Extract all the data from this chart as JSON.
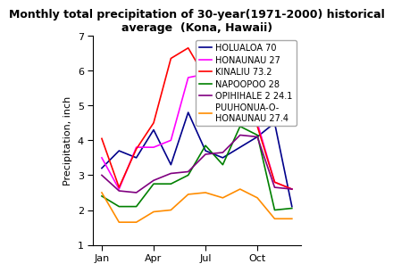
{
  "title": "Monthly total precipitation of 30-year(1971-2000) historical\naverage  (Kona, Hawaii)",
  "ylabel": "Precipitation, inch",
  "month_indices": [
    1,
    2,
    3,
    4,
    5,
    6,
    7,
    8,
    9,
    10,
    11,
    12
  ],
  "xtick_labels": [
    "Jan",
    "Apr",
    "Jul",
    "Oct"
  ],
  "xtick_positions": [
    1,
    4,
    7,
    10
  ],
  "ylim": [
    1,
    7
  ],
  "yticks": [
    1,
    2,
    3,
    4,
    5,
    6,
    7
  ],
  "series": [
    {
      "label": "HOLUALOA 70",
      "color": "#00008B",
      "values": [
        3.2,
        3.7,
        3.5,
        4.3,
        3.3,
        4.8,
        3.7,
        3.5,
        3.8,
        4.1,
        4.5,
        2.1
      ]
    },
    {
      "label": "HONAUNAU 27",
      "color": "#FF00FF",
      "values": [
        3.5,
        2.6,
        3.8,
        3.8,
        4.0,
        5.8,
        5.9,
        5.1,
        6.1,
        4.5,
        2.8,
        2.6
      ]
    },
    {
      "label": "KINALIU 73.2",
      "color": "#FF0000",
      "values": [
        4.05,
        2.65,
        3.75,
        4.5,
        6.35,
        6.65,
        5.8,
        5.75,
        6.7,
        4.4,
        2.8,
        2.6
      ]
    },
    {
      "label": "NAPOOPOO 28",
      "color": "#008000",
      "values": [
        2.4,
        2.1,
        2.1,
        2.75,
        2.75,
        3.0,
        3.85,
        3.3,
        4.4,
        4.15,
        2.0,
        2.05
      ]
    },
    {
      "label": "OPIHIHALE 2 24.1",
      "color": "#800080",
      "values": [
        3.0,
        2.55,
        2.5,
        2.85,
        3.05,
        3.1,
        3.6,
        3.65,
        4.15,
        4.1,
        2.65,
        2.6
      ]
    },
    {
      "label": "PUUHONUA-O-\nHONAUNAU 27.4",
      "color": "#FF8C00",
      "values": [
        2.5,
        1.65,
        1.65,
        1.95,
        2.0,
        2.45,
        2.5,
        2.35,
        2.6,
        2.35,
        1.75,
        1.75
      ]
    }
  ],
  "background_color": "#ffffff",
  "title_fontsize": 9,
  "legend_fontsize": 7,
  "axis_fontsize": 8,
  "axis_label_fontsize": 8
}
